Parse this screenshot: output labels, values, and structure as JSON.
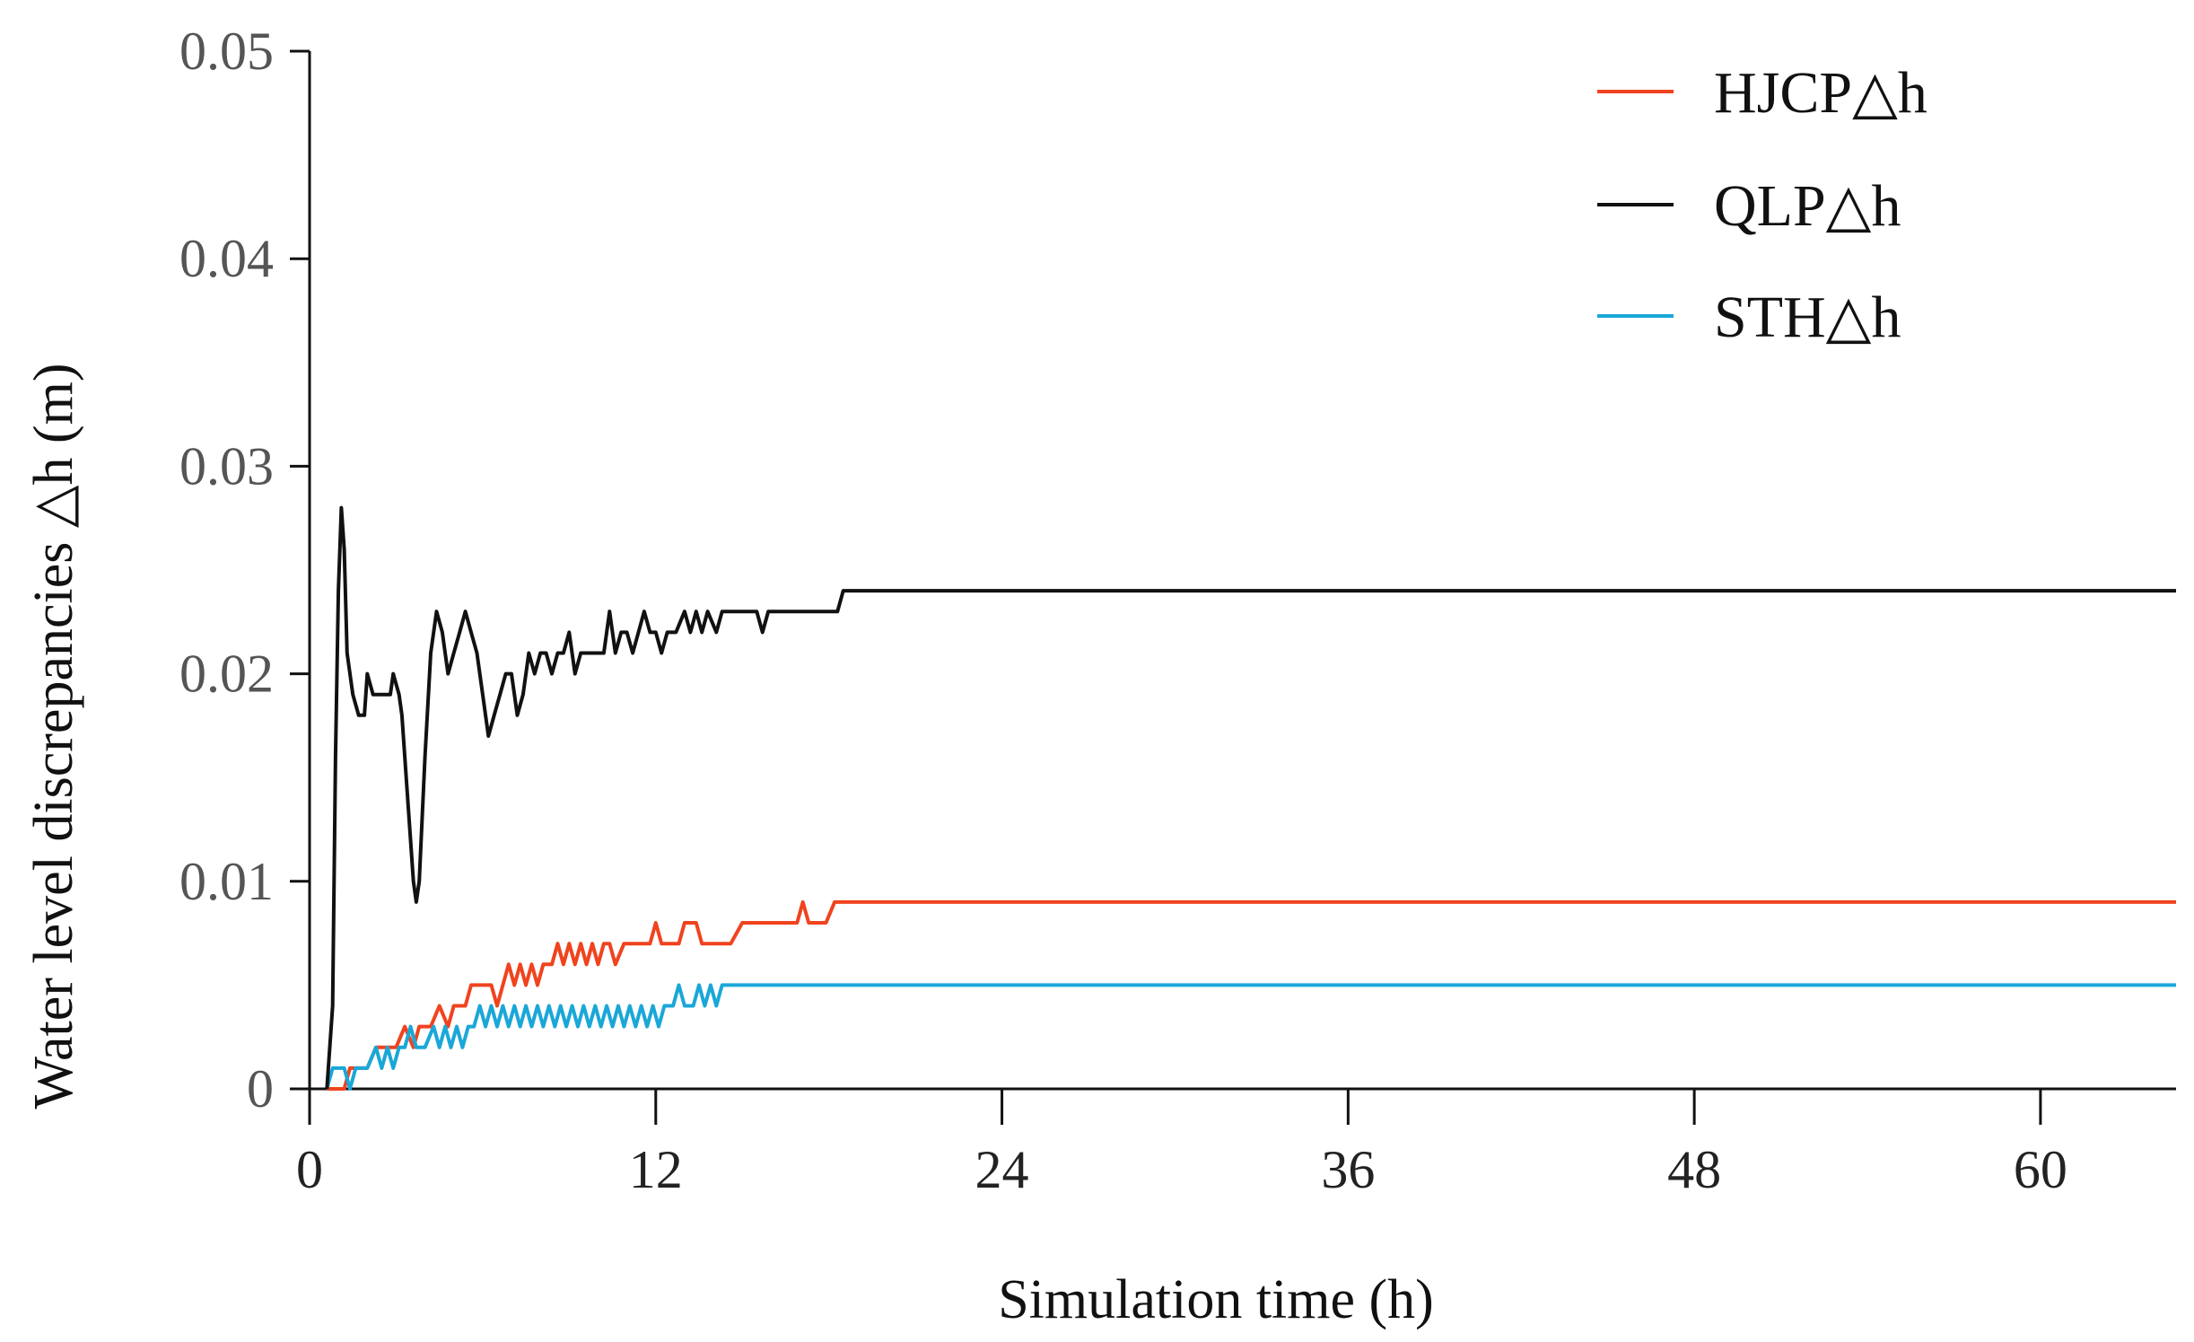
{
  "chart_data": {
    "type": "line",
    "title": "",
    "xlabel": "Simulation time  (h)",
    "ylabel": "Water level discrepancies  △h (m)",
    "xlim": [
      0,
      64.7
    ],
    "ylim": [
      0,
      0.05
    ],
    "xticks": [
      0,
      12,
      24,
      36,
      48,
      60
    ],
    "xtick_labels": [
      "0",
      "12",
      "24",
      "36",
      "48",
      "60"
    ],
    "yticks": [
      0,
      0.01,
      0.02,
      0.03,
      0.04,
      0.05
    ],
    "ytick_labels": [
      "0",
      "0.01",
      "0.02",
      "0.03",
      "0.04",
      "0.05"
    ],
    "grid": false,
    "legend_position": "top-right",
    "series": [
      {
        "name": "HJCP△h",
        "color": "#F0431E",
        "points": [
          [
            0.6,
            0
          ],
          [
            0.9,
            0
          ],
          [
            1.0,
            0
          ],
          [
            1.2,
            0
          ],
          [
            1.4,
            0.001
          ],
          [
            1.6,
            0.001
          ],
          [
            2.0,
            0.001
          ],
          [
            2.3,
            0.002
          ],
          [
            2.6,
            0.002
          ],
          [
            3.0,
            0.002
          ],
          [
            3.3,
            0.003
          ],
          [
            3.6,
            0.002
          ],
          [
            3.8,
            0.003
          ],
          [
            4.2,
            0.003
          ],
          [
            4.5,
            0.004
          ],
          [
            4.8,
            0.003
          ],
          [
            5.0,
            0.004
          ],
          [
            5.4,
            0.004
          ],
          [
            5.6,
            0.005
          ],
          [
            6.0,
            0.005
          ],
          [
            6.3,
            0.005
          ],
          [
            6.5,
            0.004
          ],
          [
            6.7,
            0.005
          ],
          [
            6.9,
            0.006
          ],
          [
            7.1,
            0.005
          ],
          [
            7.3,
            0.006
          ],
          [
            7.5,
            0.005
          ],
          [
            7.7,
            0.006
          ],
          [
            7.9,
            0.005
          ],
          [
            8.1,
            0.006
          ],
          [
            8.4,
            0.006
          ],
          [
            8.6,
            0.007
          ],
          [
            8.8,
            0.006
          ],
          [
            9.0,
            0.007
          ],
          [
            9.2,
            0.006
          ],
          [
            9.4,
            0.007
          ],
          [
            9.6,
            0.006
          ],
          [
            9.8,
            0.007
          ],
          [
            10.0,
            0.006
          ],
          [
            10.2,
            0.007
          ],
          [
            10.4,
            0.007
          ],
          [
            10.6,
            0.006
          ],
          [
            10.9,
            0.007
          ],
          [
            11.2,
            0.007
          ],
          [
            11.8,
            0.007
          ],
          [
            12.0,
            0.008
          ],
          [
            12.2,
            0.007
          ],
          [
            12.8,
            0.007
          ],
          [
            13.0,
            0.008
          ],
          [
            13.4,
            0.008
          ],
          [
            13.6,
            0.007
          ],
          [
            14.0,
            0.007
          ],
          [
            14.3,
            0.007
          ],
          [
            14.6,
            0.007
          ],
          [
            15.0,
            0.008
          ],
          [
            15.4,
            0.008
          ],
          [
            16.2,
            0.008
          ],
          [
            16.9,
            0.008
          ],
          [
            17.1,
            0.009
          ],
          [
            17.3,
            0.008
          ],
          [
            17.9,
            0.008
          ],
          [
            18.2,
            0.009
          ],
          [
            20.0,
            0.009
          ],
          [
            30.0,
            0.009
          ],
          [
            40.0,
            0.009
          ],
          [
            50.0,
            0.009
          ],
          [
            60.0,
            0.009
          ],
          [
            64.7,
            0.009
          ]
        ]
      },
      {
        "name": "QLP△h",
        "color": "#111111",
        "points": [
          [
            0.6,
            0
          ],
          [
            0.8,
            0.004
          ],
          [
            0.9,
            0.016
          ],
          [
            1.0,
            0.024
          ],
          [
            1.1,
            0.028
          ],
          [
            1.2,
            0.026
          ],
          [
            1.3,
            0.021
          ],
          [
            1.5,
            0.019
          ],
          [
            1.7,
            0.018
          ],
          [
            1.9,
            0.018
          ],
          [
            2.0,
            0.02
          ],
          [
            2.2,
            0.019
          ],
          [
            2.5,
            0.019
          ],
          [
            2.8,
            0.019
          ],
          [
            2.9,
            0.02
          ],
          [
            3.1,
            0.019
          ],
          [
            3.2,
            0.018
          ],
          [
            3.3,
            0.016
          ],
          [
            3.5,
            0.012
          ],
          [
            3.6,
            0.01
          ],
          [
            3.7,
            0.009
          ],
          [
            3.8,
            0.01
          ],
          [
            3.9,
            0.013
          ],
          [
            4.0,
            0.016
          ],
          [
            4.2,
            0.021
          ],
          [
            4.4,
            0.023
          ],
          [
            4.6,
            0.022
          ],
          [
            4.8,
            0.02
          ],
          [
            5.0,
            0.021
          ],
          [
            5.2,
            0.022
          ],
          [
            5.4,
            0.023
          ],
          [
            5.6,
            0.022
          ],
          [
            5.8,
            0.021
          ],
          [
            6.0,
            0.019
          ],
          [
            6.2,
            0.017
          ],
          [
            6.4,
            0.018
          ],
          [
            6.6,
            0.019
          ],
          [
            6.8,
            0.02
          ],
          [
            7.0,
            0.02
          ],
          [
            7.2,
            0.018
          ],
          [
            7.4,
            0.019
          ],
          [
            7.6,
            0.021
          ],
          [
            7.8,
            0.02
          ],
          [
            8.0,
            0.021
          ],
          [
            8.2,
            0.021
          ],
          [
            8.4,
            0.02
          ],
          [
            8.6,
            0.021
          ],
          [
            8.8,
            0.021
          ],
          [
            9.0,
            0.022
          ],
          [
            9.2,
            0.02
          ],
          [
            9.4,
            0.021
          ],
          [
            9.8,
            0.021
          ],
          [
            10.2,
            0.021
          ],
          [
            10.4,
            0.023
          ],
          [
            10.6,
            0.021
          ],
          [
            10.8,
            0.022
          ],
          [
            11.0,
            0.022
          ],
          [
            11.2,
            0.021
          ],
          [
            11.4,
            0.022
          ],
          [
            11.6,
            0.023
          ],
          [
            11.8,
            0.022
          ],
          [
            12.0,
            0.022
          ],
          [
            12.2,
            0.021
          ],
          [
            12.4,
            0.022
          ],
          [
            12.7,
            0.022
          ],
          [
            13.0,
            0.023
          ],
          [
            13.2,
            0.022
          ],
          [
            13.4,
            0.023
          ],
          [
            13.6,
            0.022
          ],
          [
            13.8,
            0.023
          ],
          [
            14.1,
            0.022
          ],
          [
            14.3,
            0.023
          ],
          [
            15.5,
            0.023
          ],
          [
            15.7,
            0.022
          ],
          [
            15.9,
            0.023
          ],
          [
            17.0,
            0.023
          ],
          [
            18.3,
            0.023
          ],
          [
            18.5,
            0.024
          ],
          [
            20.0,
            0.024
          ],
          [
            30.0,
            0.024
          ],
          [
            40.0,
            0.024
          ],
          [
            50.0,
            0.024
          ],
          [
            60.0,
            0.024
          ],
          [
            64.7,
            0.024
          ]
        ]
      },
      {
        "name": "STH△h",
        "color": "#1AA7D8",
        "points": [
          [
            0.6,
            0
          ],
          [
            0.8,
            0.001
          ],
          [
            1.0,
            0.001
          ],
          [
            1.2,
            0.001
          ],
          [
            1.4,
            0
          ],
          [
            1.6,
            0.001
          ],
          [
            2.0,
            0.001
          ],
          [
            2.3,
            0.002
          ],
          [
            2.5,
            0.001
          ],
          [
            2.7,
            0.002
          ],
          [
            2.9,
            0.001
          ],
          [
            3.1,
            0.002
          ],
          [
            3.3,
            0.002
          ],
          [
            3.5,
            0.003
          ],
          [
            3.7,
            0.002
          ],
          [
            4.0,
            0.002
          ],
          [
            4.3,
            0.003
          ],
          [
            4.5,
            0.002
          ],
          [
            4.7,
            0.003
          ],
          [
            4.9,
            0.002
          ],
          [
            5.1,
            0.003
          ],
          [
            5.3,
            0.002
          ],
          [
            5.5,
            0.003
          ],
          [
            5.7,
            0.003
          ],
          [
            5.9,
            0.004
          ],
          [
            6.1,
            0.003
          ],
          [
            6.3,
            0.004
          ],
          [
            6.5,
            0.003
          ],
          [
            6.7,
            0.004
          ],
          [
            6.9,
            0.003
          ],
          [
            7.1,
            0.004
          ],
          [
            7.3,
            0.003
          ],
          [
            7.5,
            0.004
          ],
          [
            7.7,
            0.003
          ],
          [
            7.9,
            0.004
          ],
          [
            8.1,
            0.003
          ],
          [
            8.3,
            0.004
          ],
          [
            8.5,
            0.003
          ],
          [
            8.7,
            0.004
          ],
          [
            8.9,
            0.003
          ],
          [
            9.1,
            0.004
          ],
          [
            9.3,
            0.003
          ],
          [
            9.5,
            0.004
          ],
          [
            9.7,
            0.003
          ],
          [
            9.9,
            0.004
          ],
          [
            10.1,
            0.003
          ],
          [
            10.3,
            0.004
          ],
          [
            10.5,
            0.003
          ],
          [
            10.7,
            0.004
          ],
          [
            10.9,
            0.003
          ],
          [
            11.1,
            0.004
          ],
          [
            11.3,
            0.003
          ],
          [
            11.5,
            0.004
          ],
          [
            11.7,
            0.003
          ],
          [
            11.9,
            0.004
          ],
          [
            12.1,
            0.003
          ],
          [
            12.3,
            0.004
          ],
          [
            12.6,
            0.004
          ],
          [
            12.8,
            0.005
          ],
          [
            13.0,
            0.004
          ],
          [
            13.3,
            0.004
          ],
          [
            13.5,
            0.005
          ],
          [
            13.7,
            0.004
          ],
          [
            13.9,
            0.005
          ],
          [
            14.1,
            0.004
          ],
          [
            14.3,
            0.005
          ],
          [
            14.7,
            0.005
          ],
          [
            16.0,
            0.005
          ],
          [
            20.0,
            0.005
          ],
          [
            30.0,
            0.005
          ],
          [
            40.0,
            0.005
          ],
          [
            50.0,
            0.005
          ],
          [
            60.0,
            0.005
          ],
          [
            64.7,
            0.005
          ]
        ]
      }
    ]
  }
}
